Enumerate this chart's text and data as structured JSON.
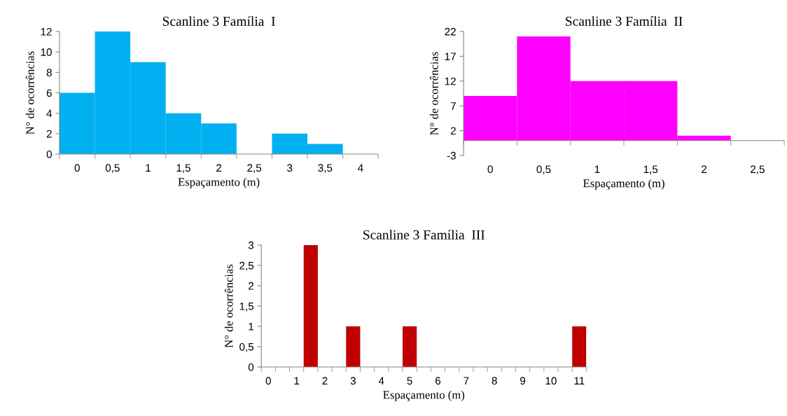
{
  "chart_data": [
    {
      "type": "bar",
      "title": "Scanline 3 Família  I",
      "xlabel": "Espaçamento (m)",
      "ylabel": "N° de ocorrências",
      "categories": [
        "0",
        "0,5",
        "1",
        "1,5",
        "2",
        "2,5",
        "3",
        "3,5",
        "4"
      ],
      "values": [
        6,
        12,
        9,
        4,
        3,
        0,
        2,
        1,
        0
      ],
      "color": "#00b0f0",
      "ylim": [
        0,
        12
      ],
      "yticks": [
        0,
        2,
        4,
        6,
        8,
        10,
        12
      ],
      "grid": false
    },
    {
      "type": "bar",
      "title": "Scanline 3 Família  II",
      "xlabel": "Espaçamento (m)",
      "ylabel": "N° de ocorrências",
      "categories": [
        "0",
        "0,5",
        "1",
        "1,5",
        "2",
        "2,5"
      ],
      "values": [
        9,
        21,
        12,
        12,
        1,
        0
      ],
      "color": "#ff00ff",
      "ylim": [
        -3,
        22
      ],
      "yticks": [
        -3,
        2,
        7,
        12,
        17,
        22
      ],
      "grid": false
    },
    {
      "type": "bar",
      "title": "Scanline 3 Família  III",
      "xlabel": "Espaçamento (m)",
      "ylabel": "N° de ocorrências",
      "categories": [
        "0",
        null,
        "1",
        null,
        "2",
        null,
        "3",
        null,
        "4",
        null,
        "5",
        null,
        "6",
        null,
        "7",
        null,
        "8",
        null,
        "9",
        null,
        "10",
        null,
        "11"
      ],
      "values": [
        0,
        0,
        0,
        3,
        0,
        0,
        1,
        0,
        0,
        0,
        1,
        0,
        0,
        0,
        0,
        0,
        0,
        0,
        0,
        0,
        0,
        0,
        1
      ],
      "color": "#c00000",
      "ylim": [
        0,
        3
      ],
      "yticks": [
        0,
        {
          "value": 0.5,
          "label": "0,5"
        },
        1,
        {
          "value": 1.5,
          "label": "1,5"
        },
        2,
        {
          "value": 2.5,
          "label": "2,5"
        },
        3
      ],
      "grid": false
    }
  ]
}
